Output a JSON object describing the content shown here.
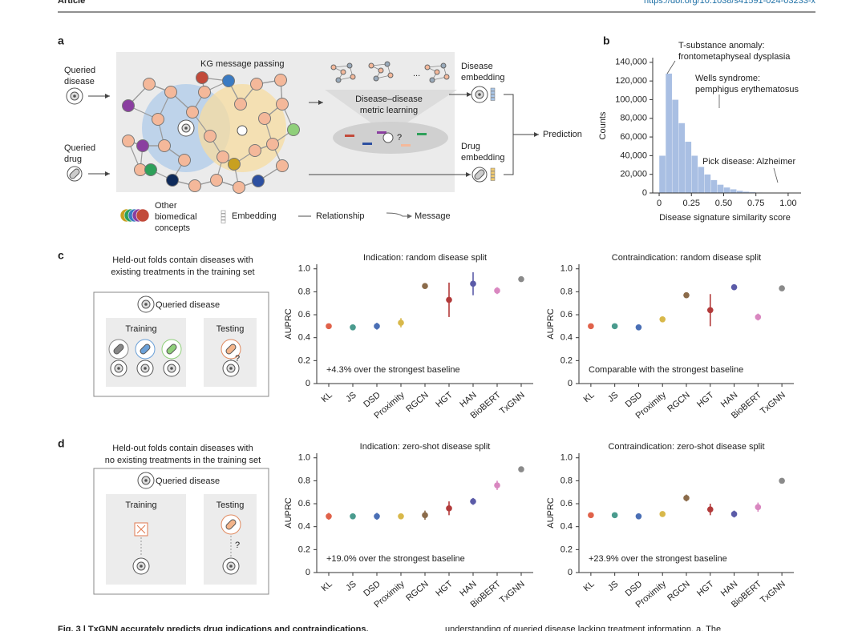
{
  "header": {
    "label": "Article",
    "doi": "https://doi.org/10.1038/s41591-024-03233-x"
  },
  "panel_a": {
    "label": "a",
    "kg_title": "KG message passing",
    "queried_disease": [
      "Queried",
      "disease"
    ],
    "queried_drug": [
      "Queried",
      "drug"
    ],
    "ellipsis": "...",
    "metric_learning": [
      "Disease–disease",
      "metric learning"
    ],
    "query_mark": "?",
    "disease_embedding": [
      "Disease",
      "embedding"
    ],
    "drug_embedding": [
      "Drug",
      "embedding"
    ],
    "prediction": "Prediction",
    "legend": {
      "concepts": [
        "Other",
        "biomedical",
        "concepts"
      ],
      "embedding": "Embedding",
      "relationship": "Relationship",
      "message": "Message"
    }
  },
  "panel_b": {
    "label": "b"
  },
  "panel_c": {
    "label": "c",
    "description": [
      "Held-out folds contain diseases with",
      "existing treatments in the training set"
    ],
    "queried_disease": "Queried disease",
    "training": "Training",
    "testing": "Testing",
    "query_mark": "?"
  },
  "panel_d": {
    "label": "d",
    "description": [
      "Held-out folds contain diseases with",
      "no existing treatments in the training set"
    ],
    "queried_disease": "Queried disease",
    "training": "Training",
    "testing": "Testing",
    "query_mark": "?"
  },
  "chart_data": [
    {
      "type": "histogram",
      "ylabel": "Counts",
      "xlabel": "Disease signature similarity score",
      "bins": [
        0,
        0.05,
        0.1,
        0.15,
        0.2,
        0.25,
        0.3,
        0.35,
        0.4,
        0.45,
        0.5,
        0.55,
        0.6,
        0.65,
        0.7,
        0.75,
        0.8,
        0.85,
        0.9,
        0.95,
        1
      ],
      "counts": [
        40000,
        128000,
        100000,
        75000,
        55000,
        40000,
        28000,
        20000,
        14000,
        9000,
        6000,
        4000,
        2500,
        1500,
        900,
        500,
        300,
        150,
        80,
        40
      ],
      "color": "#a9bfe3",
      "xlim": [
        -0.05,
        1.1
      ],
      "ylim": [
        0,
        145000
      ],
      "xticks": [
        0,
        0.25,
        {
          "value": 0.5,
          "label": "0.50"
        },
        0.75,
        {
          "value": 1,
          "label": "1.00"
        }
      ],
      "yticks": [
        0,
        {
          "value": 20000,
          "label": "20,000"
        },
        {
          "value": 40000,
          "label": "40,000"
        },
        {
          "value": 60000,
          "label": "60,000"
        },
        {
          "value": 80000,
          "label": "80,000"
        },
        {
          "value": 100000,
          "label": "100,000"
        },
        {
          "value": 120000,
          "label": "120,000"
        },
        {
          "value": 140000,
          "label": "140,000"
        }
      ],
      "annotations": [
        "T-substance anomaly:",
        "frontometaphyseal dysplasia",
        "Wells syndrome:",
        "pemphigus erythematosus",
        "Pick disease: Alzheimer"
      ]
    },
    {
      "type": "dot",
      "title": "Indication: random disease split",
      "ylabel": "AUPRC",
      "annotation": "+4.3% over the strongest baseline",
      "categories": [
        "KL",
        "JS",
        "DSD",
        "Proximity",
        "RGCN",
        "HGT",
        "HAN",
        "BioBERT",
        "TxGNN"
      ],
      "values": [
        0.5,
        0.49,
        0.5,
        0.53,
        0.85,
        0.73,
        0.87,
        0.81,
        0.91
      ],
      "errors": [
        0.02,
        0.01,
        0.03,
        0.04,
        0.02,
        0.15,
        0.1,
        0.03,
        0.02
      ],
      "colors": [
        "#e0624a",
        "#4a9b8e",
        "#4a6fb5",
        "#d8b84a",
        "#8b6b4a",
        "#b23a3a",
        "#5b5ba8",
        "#d987c0",
        "#8a8a8a"
      ],
      "ylim": [
        0,
        1.04
      ],
      "yticks": [
        0,
        0.2,
        0.4,
        0.6,
        0.8,
        {
          "value": 1,
          "label": "1.0"
        }
      ]
    },
    {
      "type": "dot",
      "title": "Contraindication: random disease split",
      "ylabel": "AUPRC",
      "annotation": "Comparable with the strongest baseline",
      "categories": [
        "KL",
        "JS",
        "DSD",
        "Proximity",
        "RGCN",
        "HGT",
        "HAN",
        "BioBERT",
        "TxGNN"
      ],
      "values": [
        0.5,
        0.5,
        0.49,
        0.56,
        0.77,
        0.64,
        0.84,
        0.58,
        0.83
      ],
      "errors": [
        0.01,
        0.01,
        0.02,
        0.01,
        0.02,
        0.14,
        0.01,
        0.03,
        0.01
      ],
      "colors": [
        "#e0624a",
        "#4a9b8e",
        "#4a6fb5",
        "#d8b84a",
        "#8b6b4a",
        "#b23a3a",
        "#5b5ba8",
        "#d987c0",
        "#8a8a8a"
      ],
      "ylim": [
        0,
        1.04
      ],
      "yticks": [
        0,
        0.2,
        0.4,
        0.6,
        0.8,
        {
          "value": 1,
          "label": "1.0"
        }
      ]
    },
    {
      "type": "dot",
      "title": "Indication: zero-shot disease split",
      "ylabel": "AUPRC",
      "annotation": "+19.0% over the strongest baseline",
      "categories": [
        "KL",
        "JS",
        "DSD",
        "Proximity",
        "RGCN",
        "HGT",
        "HAN",
        "BioBERT",
        "TxGNN"
      ],
      "values": [
        0.49,
        0.49,
        0.49,
        0.49,
        0.5,
        0.56,
        0.62,
        0.76,
        0.9
      ],
      "errors": [
        0.03,
        0.01,
        0.03,
        0.01,
        0.04,
        0.06,
        0.03,
        0.04,
        0.01
      ],
      "colors": [
        "#e0624a",
        "#4a9b8e",
        "#4a6fb5",
        "#d8b84a",
        "#8b6b4a",
        "#b23a3a",
        "#5b5ba8",
        "#d987c0",
        "#8a8a8a"
      ],
      "ylim": [
        0,
        1.04
      ],
      "yticks": [
        0,
        0.2,
        0.4,
        0.6,
        0.8,
        {
          "value": 1,
          "label": "1.0"
        }
      ]
    },
    {
      "type": "dot",
      "title": "Contraindication: zero-shot disease split",
      "ylabel": "AUPRC",
      "annotation": "+23.9% over the strongest baseline",
      "categories": [
        "KL",
        "JS",
        "DSD",
        "Proximity",
        "RGCN",
        "HGT",
        "HAN",
        "BioBERT",
        "TxGNN"
      ],
      "values": [
        0.5,
        0.5,
        0.49,
        0.51,
        0.65,
        0.55,
        0.51,
        0.57,
        0.8
      ],
      "errors": [
        0.01,
        0.01,
        0.01,
        0.01,
        0.03,
        0.05,
        0.03,
        0.04,
        0.01
      ],
      "colors": [
        "#e0624a",
        "#4a9b8e",
        "#4a6fb5",
        "#d8b84a",
        "#8b6b4a",
        "#b23a3a",
        "#5b5ba8",
        "#d987c0",
        "#8a8a8a"
      ],
      "ylim": [
        0,
        1.04
      ],
      "yticks": [
        0,
        0.2,
        0.4,
        0.6,
        0.8,
        {
          "value": 1,
          "label": "1.0"
        }
      ]
    }
  ],
  "caption": {
    "left": "Fig. 3 | TxGNN accurately predicts drug indications and contraindications.",
    "right": "understanding of queried disease lacking treatment information. a, The"
  }
}
